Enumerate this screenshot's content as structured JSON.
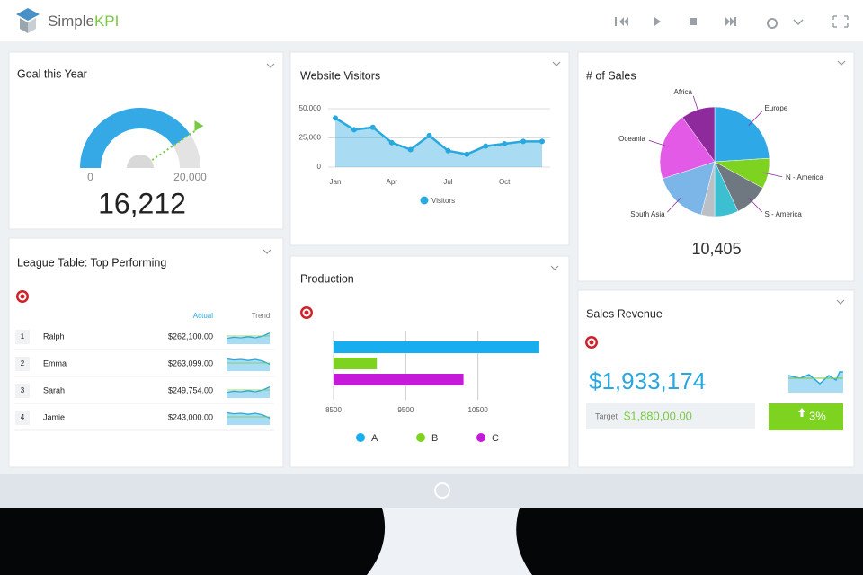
{
  "header": {
    "brand_prefix": "Simple",
    "brand_suffix": "KPI"
  },
  "chart_data": [
    {
      "type": "gauge",
      "title": "Goal this Year",
      "value": 16212,
      "value_label": "16,212",
      "color": "#34a9e6",
      "ylim": [
        0,
        20000
      ],
      "yticks": [
        0,
        {
          "value": 20000,
          "label": "20,000"
        }
      ]
    },
    {
      "type": "line",
      "title": "Website Visitors",
      "categories": [
        "Jan",
        null,
        null,
        "Apr",
        null,
        null,
        "Jul",
        null,
        null,
        "Oct",
        null,
        null
      ],
      "series": [
        {
          "name": "Visitors",
          "color": "#29a8e0",
          "values": [
            42000,
            32000,
            34000,
            21000,
            15000,
            27000,
            14000,
            11000,
            18000,
            20000,
            22000,
            22000
          ]
        }
      ],
      "ylim": [
        0,
        50000
      ],
      "yticks": [
        0,
        {
          "value": 25000,
          "label": "25,000"
        },
        {
          "value": 50000,
          "label": "50,000"
        }
      ],
      "grid": true
    },
    {
      "type": "pie",
      "title": "# of Sales",
      "categories": [
        "Europe",
        "N - America",
        "S - America",
        null,
        null,
        "South Asia",
        "Oceania",
        "Africa"
      ],
      "values": [
        24,
        9,
        10,
        7,
        4,
        16,
        20,
        10
      ],
      "colors": [
        "#2ea8e6",
        "#7ed321",
        "#6f7880",
        "#3bbfd1",
        "#b9c0c6",
        "#7cb5e8",
        "#e25ae6",
        "#8e2a9b"
      ],
      "total": "10,405"
    },
    {
      "type": "bar",
      "title": "Production",
      "series": [
        {
          "name": "A",
          "color": "#17aef0",
          "values": [
            11350
          ]
        },
        {
          "name": "B",
          "color": "#7ed321",
          "values": [
            9100
          ]
        },
        {
          "name": "C",
          "color": "#c51ad9",
          "values": [
            10300
          ]
        }
      ],
      "xlim": [
        8500,
        11500
      ],
      "xticks": [
        8500,
        9500,
        10500
      ],
      "grid": true
    }
  ],
  "league_table": {
    "title": "League Table: Top Performing",
    "columns": [
      "Actual",
      "Trend"
    ],
    "rows": [
      [
        "1",
        "Ralph",
        "$262,100.00"
      ],
      [
        "2",
        "Emma",
        "$263,099.00"
      ],
      [
        "3",
        "Sarah",
        "$249,754.00"
      ],
      [
        "4",
        "Jamie",
        "$243,000.00"
      ]
    ]
  },
  "sales_revenue": {
    "title": "Sales Revenue",
    "value": "$1,933,174",
    "target_label": "Target",
    "target": "$1,880,00.00",
    "change": "3%"
  }
}
